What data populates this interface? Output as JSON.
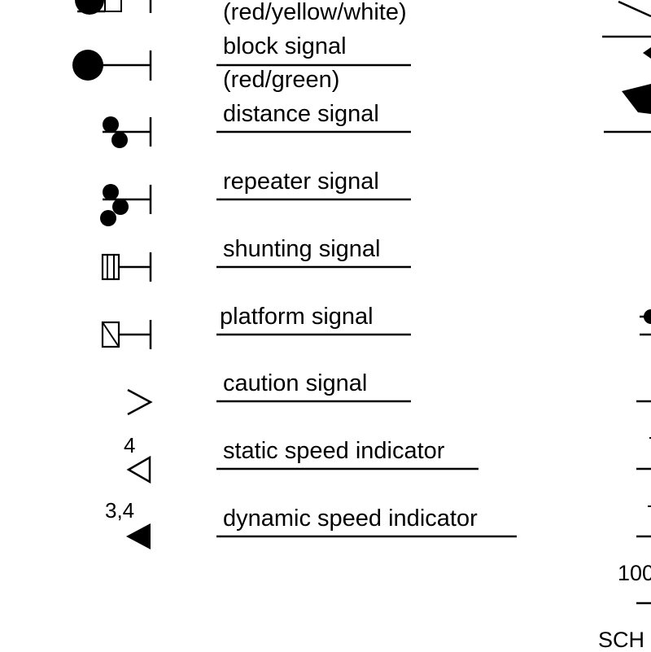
{
  "legend": {
    "entries": [
      {
        "label": "(red/yellow/white)",
        "symbol": "main-signal"
      },
      {
        "label": "block signal",
        "symbol": "block-signal"
      },
      {
        "label": "(red/green)",
        "symbol": "none"
      },
      {
        "label": "distance signal",
        "symbol": "distance-signal"
      },
      {
        "label": "repeater signal",
        "symbol": "repeater-signal"
      },
      {
        "label": "shunting signal",
        "symbol": "shunting-signal"
      },
      {
        "label": "platform signal",
        "symbol": "platform-signal"
      },
      {
        "label": "caution signal",
        "symbol": "caution-signal"
      },
      {
        "label": "static speed indicator",
        "symbol": "static-speed-indicator",
        "symbol_text": "4"
      },
      {
        "label": "dynamic speed indicator",
        "symbol": "dynamic-speed-indicator",
        "symbol_text": "3,4"
      }
    ]
  },
  "right_edge": {
    "partial_number": "100",
    "partial_text": "SCH"
  }
}
